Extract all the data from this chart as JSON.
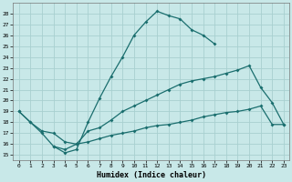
{
  "xlabel": "Humidex (Indice chaleur)",
  "background_color": "#c8e8e8",
  "grid_color": "#a8d0d0",
  "line_color": "#1a6e6e",
  "xlim": [
    -0.5,
    23.5
  ],
  "ylim": [
    14.5,
    29.0
  ],
  "xticks": [
    0,
    1,
    2,
    3,
    4,
    5,
    6,
    7,
    8,
    9,
    10,
    11,
    12,
    13,
    14,
    15,
    16,
    17,
    18,
    19,
    20,
    21,
    22,
    23
  ],
  "yticks": [
    15,
    16,
    17,
    18,
    19,
    20,
    21,
    22,
    23,
    24,
    25,
    26,
    27,
    28
  ],
  "curve1_x": [
    0,
    1,
    2,
    3,
    4,
    5,
    6,
    7,
    8,
    9,
    10,
    11,
    12,
    13,
    14,
    15,
    16,
    17
  ],
  "curve1_y": [
    19.0,
    18.0,
    17.0,
    15.8,
    15.2,
    15.5,
    18.0,
    20.2,
    22.2,
    24.0,
    26.0,
    27.2,
    28.2,
    27.8,
    27.5,
    26.5,
    26.0,
    25.2
  ],
  "curve2_x": [
    0,
    1,
    2,
    3,
    4,
    5,
    6,
    7,
    8,
    9,
    10,
    11,
    12,
    13,
    14,
    15,
    16,
    17,
    18,
    19,
    20,
    21,
    22,
    23
  ],
  "curve2_y": [
    19.0,
    18.0,
    17.2,
    17.0,
    16.2,
    16.0,
    17.2,
    17.5,
    18.2,
    19.0,
    19.5,
    20.0,
    20.5,
    21.0,
    21.5,
    21.8,
    22.0,
    22.2,
    22.5,
    22.8,
    23.2,
    21.2,
    19.8,
    17.8
  ],
  "curve3_x": [
    3,
    4,
    5,
    6,
    7,
    8,
    9,
    10,
    11,
    12,
    13,
    14,
    15,
    16,
    17,
    18,
    19,
    20,
    21,
    22,
    23
  ],
  "curve3_y": [
    15.8,
    15.5,
    16.0,
    16.2,
    16.5,
    16.8,
    17.0,
    17.2,
    17.5,
    17.7,
    17.8,
    18.0,
    18.2,
    18.5,
    18.7,
    18.9,
    19.0,
    19.2,
    19.5,
    17.8,
    17.8
  ]
}
